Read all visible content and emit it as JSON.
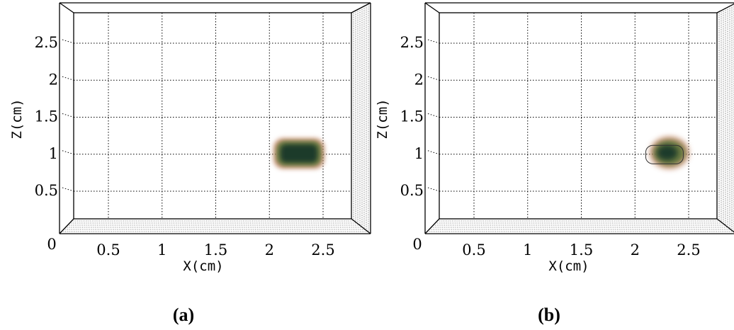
{
  "chart_data": [
    {
      "type": "heatmap",
      "caption": "(a)",
      "xlabel": "X(cm)",
      "ylabel": "Z(cm)",
      "x_ticks": [
        "0",
        "0.5",
        "1",
        "1.5",
        "2",
        "2.5"
      ],
      "y_ticks": [
        "0.5",
        "1",
        "1.5",
        "2",
        "2.5"
      ],
      "xlim": [
        0,
        2.6
      ],
      "ylim": [
        0.2,
        2.75
      ],
      "grid": true,
      "blob": {
        "shape": "rounded-rectangle",
        "x_min": 2.05,
        "x_max": 2.5,
        "z_min": 0.82,
        "z_max": 1.2,
        "color": "#1f3a2a"
      }
    },
    {
      "type": "heatmap",
      "caption": "(b)",
      "xlabel": "X(cm)",
      "ylabel": "Z(cm)",
      "x_ticks": [
        "0",
        "0.5",
        "1",
        "1.5",
        "2",
        "2.5"
      ],
      "y_ticks": [
        "0.5",
        "1",
        "1.5",
        "2",
        "2.5"
      ],
      "xlim": [
        0,
        2.6
      ],
      "ylim": [
        0.2,
        2.75
      ],
      "grid": true,
      "blob": {
        "shape": "blob",
        "x_center": 2.32,
        "z_center": 1.02,
        "x_radius": 0.17,
        "z_radius": 0.2,
        "color": "#1f3a2a"
      },
      "outline": {
        "shape": "rounded-rectangle",
        "x_min": 2.1,
        "x_max": 2.45,
        "z_min": 0.87,
        "z_max": 1.12
      }
    }
  ]
}
